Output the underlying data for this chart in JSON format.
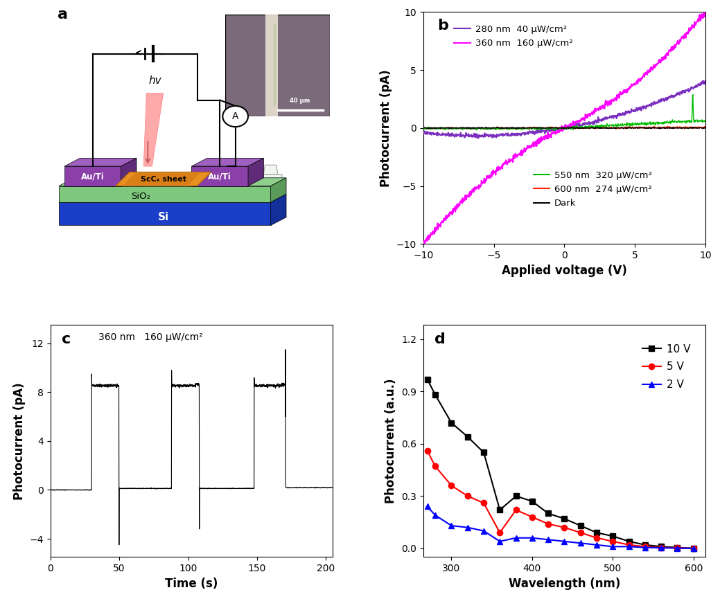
{
  "panel_b": {
    "xlabel": "Applied voltage (V)",
    "ylabel": "Photocurrent (pA)",
    "xlim": [
      -10,
      10
    ],
    "ylim": [
      -10,
      10
    ],
    "purple_color": "#7B2FBE",
    "magenta_color": "#FF00FF",
    "green_color": "#00BB00",
    "red_color": "#FF2200",
    "dark_color": "#000000"
  },
  "panel_c": {
    "annotation": "360 nm   160 μW/cm²",
    "xlabel": "Time (s)",
    "ylabel": "Photocurrent (pA)",
    "xlim": [
      0,
      205
    ],
    "yticks": [
      -4,
      0,
      4,
      8,
      12
    ],
    "xticks": [
      0,
      50,
      100,
      150,
      200
    ]
  },
  "panel_d": {
    "xlabel": "Wavelength (nm)",
    "ylabel": "Photocurrent (a.u.)",
    "xlim": [
      265,
      615
    ],
    "ylim": [
      -0.05,
      1.28
    ],
    "yticks": [
      0.0,
      0.3,
      0.6,
      0.9,
      1.2
    ],
    "xticks": [
      300,
      400,
      500,
      600
    ],
    "10V_x": [
      270,
      280,
      300,
      320,
      340,
      360,
      380,
      400,
      420,
      440,
      460,
      480,
      500,
      520,
      540,
      560,
      580,
      600
    ],
    "10V_y": [
      0.97,
      0.88,
      0.72,
      0.64,
      0.55,
      0.22,
      0.3,
      0.27,
      0.2,
      0.17,
      0.13,
      0.09,
      0.07,
      0.04,
      0.02,
      0.01,
      0.005,
      0.0
    ],
    "5V_x": [
      270,
      280,
      300,
      320,
      340,
      360,
      380,
      400,
      420,
      440,
      460,
      480,
      500,
      520,
      540,
      560,
      580,
      600
    ],
    "5V_y": [
      0.56,
      0.47,
      0.36,
      0.3,
      0.26,
      0.09,
      0.22,
      0.18,
      0.14,
      0.12,
      0.09,
      0.06,
      0.04,
      0.02,
      0.01,
      0.005,
      0.002,
      0.0
    ],
    "2V_x": [
      270,
      280,
      300,
      320,
      340,
      360,
      380,
      400,
      420,
      440,
      460,
      480,
      500,
      520,
      540,
      560,
      580,
      600
    ],
    "2V_y": [
      0.24,
      0.19,
      0.13,
      0.12,
      0.1,
      0.04,
      0.06,
      0.06,
      0.05,
      0.04,
      0.03,
      0.02,
      0.01,
      0.01,
      0.005,
      0.003,
      0.001,
      0.0
    ]
  },
  "panel_a_bg": "#B8D4E8",
  "si_color": "#1A3EC8",
  "sio2_color": "#7DC87D",
  "auti_color": "#8B3FA8",
  "sccx_color": "#E89020",
  "sccx_dark": "#B85000"
}
